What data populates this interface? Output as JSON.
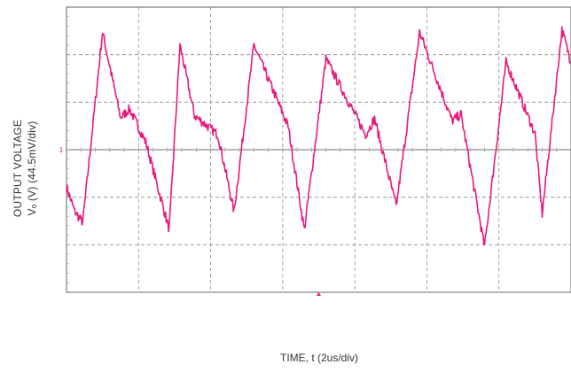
{
  "colors": {
    "trace": "#e8197d",
    "grid": "#8c8c8c",
    "frame": "#666666",
    "text": "#333333"
  },
  "labels": {
    "ylabel_line1": "OUTPUT VOLTAGE",
    "ylabel_line2": "Vₒ (V) (44.5mV/div)",
    "xlabel": "TIME, t (2us/div)",
    "channel_marker": "1"
  },
  "chart_data": {
    "type": "line",
    "title": "",
    "xlabel": "TIME, t (2us/div)",
    "ylabel": "OUTPUT VOLTAGE Vₒ (V) (44.5mV/div)",
    "x_unit": "us",
    "y_unit": "mV",
    "xlim": [
      0,
      14
    ],
    "ylim": [
      -133.5,
      133.5
    ],
    "x_divisions": 7,
    "y_divisions": 6,
    "grid": true,
    "legend": "none",
    "series": [
      {
        "color": "#e8197d",
        "x": [
          0.0,
          0.23,
          0.45,
          1.0,
          1.5,
          1.75,
          2.2,
          2.85,
          3.15,
          3.55,
          4.2,
          4.65,
          5.2,
          6.15,
          6.6,
          7.2,
          8.3,
          8.55,
          9.15,
          9.8,
          10.7,
          10.95,
          11.6,
          12.2,
          13.0,
          13.2,
          13.75,
          14.0
        ],
        "y": [
          -35,
          -58,
          -68,
          110,
          30,
          38,
          7,
          -75,
          98,
          32,
          14,
          -58,
          98,
          22,
          -75,
          85,
          14,
          29,
          -53,
          110,
          27,
          33,
          -91,
          82,
          15,
          -60,
          112,
          82
        ]
      }
    ]
  }
}
